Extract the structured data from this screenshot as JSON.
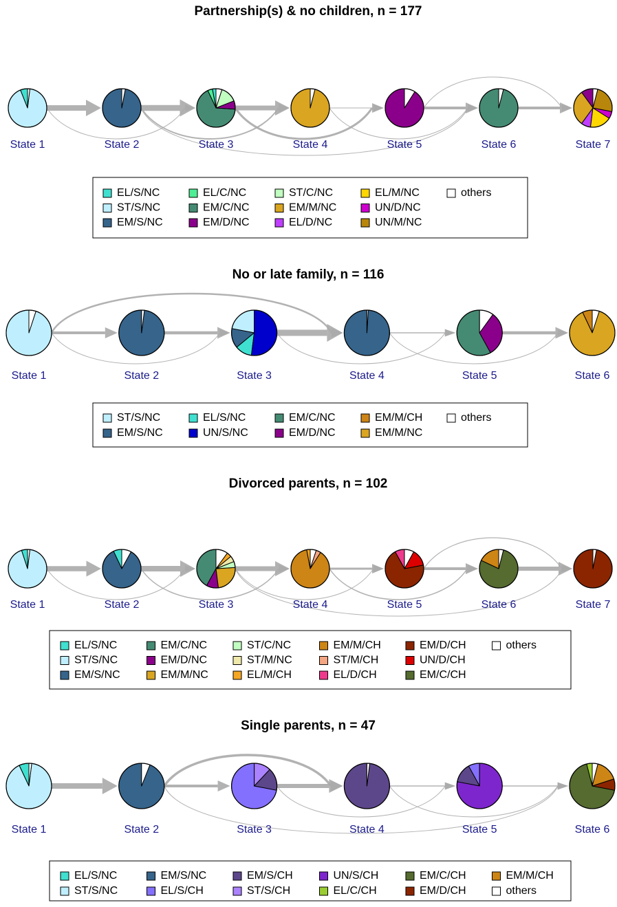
{
  "chart_data": [
    {
      "type": "pie",
      "title": "Partnership(s) & no children, n = 177",
      "categories": [
        "EL/S/NC",
        "ST/S/NC",
        "EM/S/NC",
        "EL/C/NC",
        "EM/C/NC",
        "EM/D/NC",
        "ST/C/NC",
        "EM/M/NC",
        "EL/D/NC",
        "EL/M/NC",
        "UN/D/NC",
        "UN/M/NC",
        "others"
      ],
      "colors": [
        "#40E0D0",
        "#BFEFFF",
        "#36648B",
        "#4EEE94",
        "#458B74",
        "#8B008B",
        "#C1FFC1",
        "#DAA520",
        "#BF3EFF",
        "#FFD700",
        "#CD00CD",
        "#B8860B",
        "#FFFFFF"
      ],
      "states": [
        {
          "label": "State 1",
          "values": [
            6,
            92,
            0,
            0,
            0,
            0,
            0,
            0,
            0,
            0,
            0,
            0,
            2
          ]
        },
        {
          "label": "State 2",
          "values": [
            0,
            0,
            97,
            0,
            0,
            0,
            0,
            0,
            0,
            0,
            0,
            0,
            3
          ]
        },
        {
          "label": "State 3",
          "values": [
            3,
            0,
            0,
            4,
            67,
            7,
            14,
            0,
            0,
            0,
            0,
            0,
            5
          ]
        },
        {
          "label": "State 4",
          "values": [
            0,
            0,
            0,
            0,
            0,
            0,
            0,
            96,
            0,
            0,
            0,
            0,
            4
          ]
        },
        {
          "label": "State 5",
          "values": [
            0,
            0,
            0,
            0,
            0,
            91,
            0,
            0,
            0,
            0,
            0,
            0,
            9
          ]
        },
        {
          "label": "State 6",
          "values": [
            0,
            0,
            0,
            0,
            96,
            0,
            0,
            0,
            0,
            0,
            0,
            0,
            4
          ]
        },
        {
          "label": "State 7",
          "values": [
            0,
            0,
            0,
            0,
            0,
            10,
            0,
            30,
            8,
            18,
            6,
            24,
            4
          ]
        }
      ],
      "transitions": [
        {
          "from": 0,
          "to": 1,
          "share": 80
        },
        {
          "from": 0,
          "to": 2,
          "share": 10
        },
        {
          "from": 1,
          "to": 2,
          "share": 85
        },
        {
          "from": 1,
          "to": 3,
          "share": 20
        },
        {
          "from": 2,
          "to": 3,
          "share": 70
        },
        {
          "from": 2,
          "to": 4,
          "share": 30
        },
        {
          "from": 3,
          "to": 4,
          "share": 10
        },
        {
          "from": 3,
          "to": 5,
          "share": 10
        },
        {
          "from": 4,
          "to": 5,
          "share": 40
        },
        {
          "from": 1,
          "to": 5,
          "share": 8
        },
        {
          "from": 4,
          "to": 6,
          "share": 10
        },
        {
          "from": 5,
          "to": 6,
          "share": 40
        }
      ]
    },
    {
      "type": "pie",
      "title": "No or late family, n = 116",
      "categories": [
        "ST/S/NC",
        "EM/S/NC",
        "EL/S/NC",
        "UN/S/NC",
        "EM/C/NC",
        "EM/D/NC",
        "EM/M/CH",
        "EM/M/NC",
        "others"
      ],
      "colors": [
        "#BFEFFF",
        "#36648B",
        "#40E0D0",
        "#0000CD",
        "#458B74",
        "#8B008B",
        "#CD8516",
        "#DAA520",
        "#FFFFFF"
      ],
      "states": [
        {
          "label": "State 1",
          "values": [
            95,
            0,
            0,
            0,
            0,
            0,
            0,
            0,
            5
          ]
        },
        {
          "label": "State 2",
          "values": [
            0,
            98,
            0,
            0,
            0,
            0,
            0,
            0,
            2
          ]
        },
        {
          "label": "State 3",
          "values": [
            22,
            14,
            12,
            52,
            0,
            0,
            0,
            0,
            0
          ]
        },
        {
          "label": "State 4",
          "values": [
            0,
            99,
            0,
            0,
            0,
            0,
            0,
            0,
            1
          ]
        },
        {
          "label": "State 5",
          "values": [
            0,
            0,
            0,
            0,
            58,
            32,
            0,
            0,
            10
          ]
        },
        {
          "label": "State 6",
          "values": [
            0,
            0,
            0,
            0,
            0,
            0,
            7,
            88,
            5
          ]
        }
      ],
      "transitions": [
        {
          "from": 0,
          "to": 1,
          "share": 40
        },
        {
          "from": 0,
          "to": 2,
          "share": 10
        },
        {
          "from": 0,
          "to": 3,
          "share": 25
        },
        {
          "from": 1,
          "to": 2,
          "share": 45
        },
        {
          "from": 2,
          "to": 3,
          "share": 90
        },
        {
          "from": 2,
          "to": 4,
          "share": 5
        },
        {
          "from": 3,
          "to": 4,
          "share": 15
        },
        {
          "from": 3,
          "to": 5,
          "share": 5
        },
        {
          "from": 4,
          "to": 5,
          "share": 45
        }
      ]
    },
    {
      "type": "pie",
      "title": "Divorced parents, n = 102",
      "categories": [
        "EL/S/NC",
        "ST/S/NC",
        "EM/S/NC",
        "EM/C/NC",
        "EM/D/NC",
        "EM/M/NC",
        "ST/C/NC",
        "ST/M/NC",
        "EL/M/CH",
        "EM/M/CH",
        "ST/M/CH",
        "EL/D/CH",
        "EM/D/CH",
        "UN/D/CH",
        "EM/C/CH",
        "others"
      ],
      "colors": [
        "#40E0D0",
        "#BFEFFF",
        "#36648B",
        "#458B74",
        "#8B008B",
        "#DAA520",
        "#C1FFC1",
        "#EEE8AA",
        "#F5A623",
        "#CD8516",
        "#F4A582",
        "#EE3A8C",
        "#8B2500",
        "#DD0000",
        "#556B2F",
        "#FFFFFF"
      ],
      "states": [
        {
          "label": "State 1",
          "values": [
            5,
            93,
            0,
            0,
            0,
            0,
            0,
            0,
            0,
            0,
            0,
            0,
            0,
            0,
            0,
            2
          ]
        },
        {
          "label": "State 2",
          "values": [
            7,
            0,
            85,
            0,
            0,
            0,
            0,
            0,
            0,
            0,
            0,
            0,
            0,
            0,
            0,
            8
          ]
        },
        {
          "label": "State 3",
          "values": [
            0,
            0,
            0,
            42,
            10,
            24,
            5,
            5,
            4,
            0,
            0,
            0,
            0,
            0,
            0,
            10
          ]
        },
        {
          "label": "State 4",
          "values": [
            0,
            0,
            0,
            0,
            0,
            0,
            0,
            0,
            3,
            88,
            4,
            0,
            0,
            0,
            0,
            5
          ]
        },
        {
          "label": "State 5",
          "values": [
            0,
            0,
            0,
            0,
            0,
            0,
            0,
            0,
            0,
            0,
            0,
            8,
            70,
            14,
            0,
            8
          ]
        },
        {
          "label": "State 6",
          "values": [
            0,
            0,
            0,
            0,
            0,
            0,
            0,
            0,
            0,
            18,
            0,
            0,
            0,
            0,
            78,
            4
          ]
        },
        {
          "label": "State 7",
          "values": [
            0,
            0,
            0,
            0,
            0,
            0,
            0,
            0,
            0,
            0,
            0,
            0,
            97,
            0,
            0,
            3
          ]
        }
      ],
      "transitions": [
        {
          "from": 0,
          "to": 1,
          "share": 75
        },
        {
          "from": 0,
          "to": 2,
          "share": 10
        },
        {
          "from": 1,
          "to": 2,
          "share": 80
        },
        {
          "from": 1,
          "to": 3,
          "share": 15
        },
        {
          "from": 2,
          "to": 3,
          "share": 70
        },
        {
          "from": 2,
          "to": 4,
          "share": 10
        },
        {
          "from": 3,
          "to": 4,
          "share": 30
        },
        {
          "from": 3,
          "to": 5,
          "share": 15
        },
        {
          "from": 4,
          "to": 5,
          "share": 40
        },
        {
          "from": 2,
          "to": 6,
          "share": 8
        },
        {
          "from": 4,
          "to": 6,
          "share": 12
        },
        {
          "from": 5,
          "to": 6,
          "share": 60
        }
      ]
    },
    {
      "type": "pie",
      "title": "Single parents, n = 47",
      "categories": [
        "EL/S/NC",
        "ST/S/NC",
        "EM/S/NC",
        "EL/S/CH",
        "EM/S/CH",
        "ST/S/CH",
        "UN/S/CH",
        "EL/C/CH",
        "EM/C/CH",
        "EM/D/CH",
        "EM/M/CH",
        "others"
      ],
      "colors": [
        "#40E0D0",
        "#BFEFFF",
        "#36648B",
        "#8470FF",
        "#5D478B",
        "#AB82FF",
        "#7D26CD",
        "#9ACD32",
        "#556B2F",
        "#8B2500",
        "#CD8516",
        "#FFFFFF"
      ],
      "states": [
        {
          "label": "State 1",
          "values": [
            7,
            91,
            0,
            0,
            0,
            0,
            0,
            0,
            0,
            0,
            0,
            2
          ]
        },
        {
          "label": "State 2",
          "values": [
            0,
            0,
            94,
            0,
            0,
            0,
            0,
            0,
            0,
            0,
            0,
            6
          ]
        },
        {
          "label": "State 3",
          "values": [
            0,
            0,
            0,
            72,
            16,
            12,
            0,
            0,
            0,
            0,
            0,
            0
          ]
        },
        {
          "label": "State 4",
          "values": [
            0,
            0,
            0,
            0,
            98,
            0,
            0,
            0,
            0,
            0,
            0,
            2
          ]
        },
        {
          "label": "State 5",
          "values": [
            0,
            0,
            0,
            8,
            14,
            0,
            78,
            0,
            0,
            0,
            0,
            0
          ]
        },
        {
          "label": "State 6",
          "values": [
            0,
            0,
            0,
            0,
            0,
            0,
            0,
            4,
            68,
            8,
            16,
            4
          ]
        }
      ],
      "transitions": [
        {
          "from": 0,
          "to": 1,
          "share": 80
        },
        {
          "from": 1,
          "to": 2,
          "share": 40
        },
        {
          "from": 1,
          "to": 3,
          "share": 35
        },
        {
          "from": 1,
          "to": 5,
          "share": 8
        },
        {
          "from": 2,
          "to": 3,
          "share": 60
        },
        {
          "from": 2,
          "to": 4,
          "share": 8
        },
        {
          "from": 3,
          "to": 4,
          "share": 15
        },
        {
          "from": 3,
          "to": 5,
          "share": 10
        },
        {
          "from": 4,
          "to": 5,
          "share": 15
        }
      ]
    }
  ]
}
